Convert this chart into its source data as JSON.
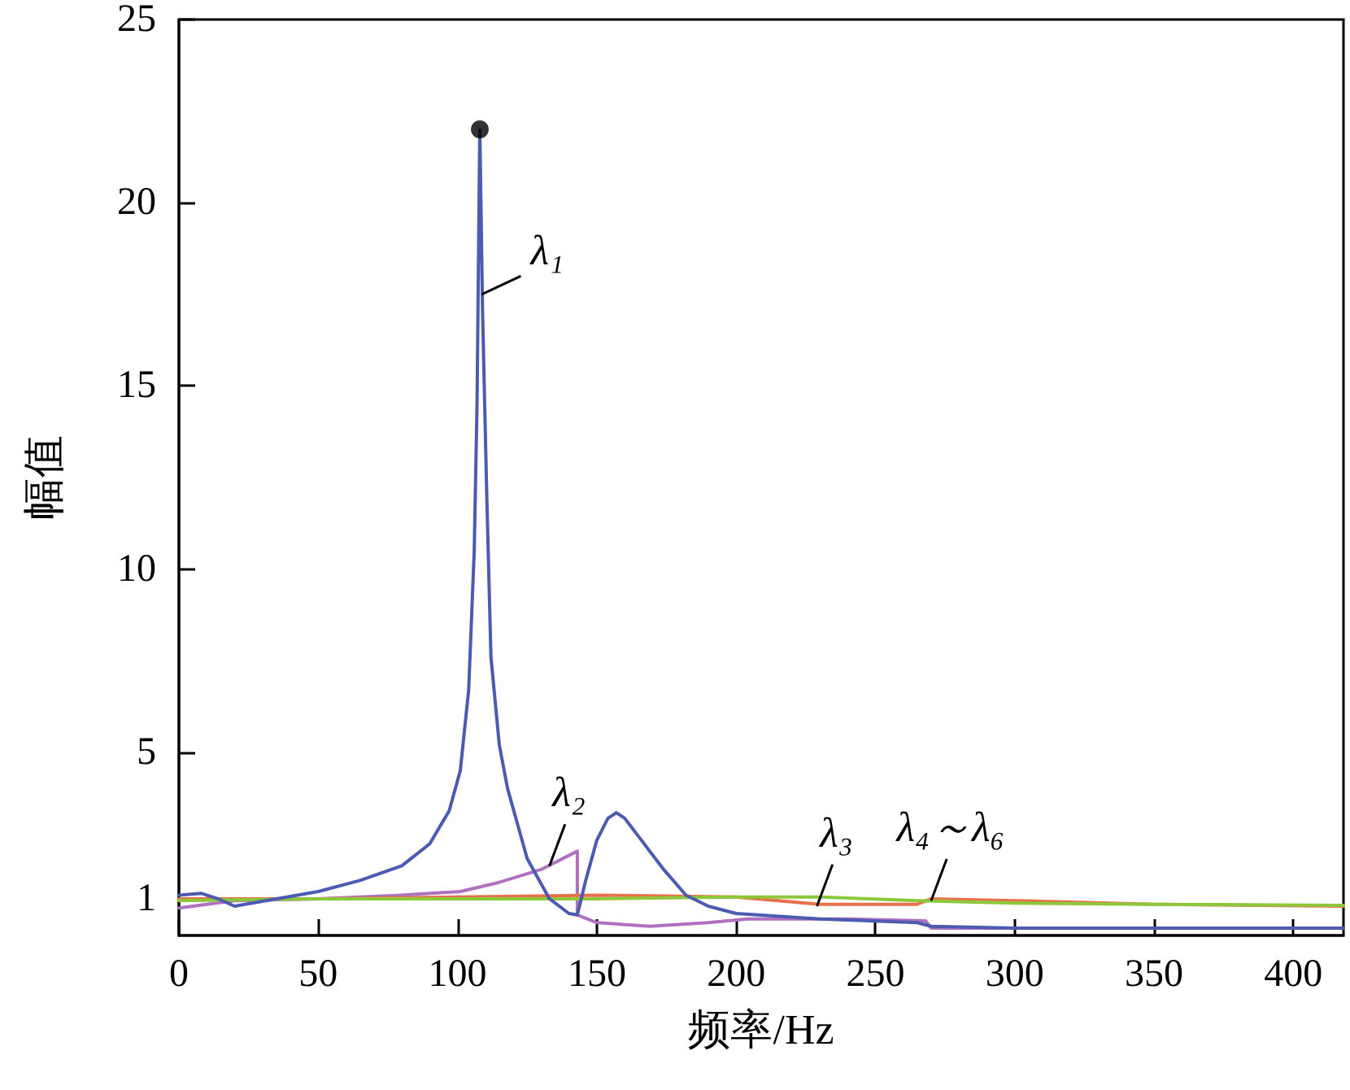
{
  "chart_data": {
    "type": "line",
    "xlabel": "频率/Hz",
    "ylabel": "幅值",
    "xlim": [
      0,
      418
    ],
    "xticks": [
      0,
      50,
      100,
      150,
      200,
      250,
      300,
      350,
      400
    ],
    "ylim": [
      0,
      25
    ],
    "yticks": [
      1,
      5,
      10,
      15,
      20,
      25
    ],
    "grid": false,
    "marker": "none",
    "line_style": "solid",
    "series": [
      {
        "color": "#b070c0",
        "x": [
          0,
          10,
          20,
          50,
          80,
          101,
          115,
          130,
          143,
          143,
          150,
          169,
          190,
          204,
          240,
          268,
          270,
          300,
          418
        ],
        "values": [
          0.75,
          0.85,
          0.95,
          1.0,
          1.1,
          1.2,
          1.45,
          1.8,
          2.3,
          0.56,
          0.35,
          0.25,
          0.35,
          0.45,
          0.45,
          0.4,
          0.2,
          0.2,
          0.2
        ]
      },
      {
        "color": "#e8704a",
        "x": [
          0,
          50,
          100,
          150,
          200,
          230,
          265,
          270,
          300,
          350,
          418
        ],
        "values": [
          1.0,
          1.0,
          1.05,
          1.1,
          1.05,
          0.85,
          0.85,
          1.0,
          0.95,
          0.85,
          0.8
        ]
      },
      {
        "color": "#8cc83c",
        "x": [
          0,
          50,
          100,
          150,
          200,
          230,
          265,
          300,
          350,
          418
        ],
        "values": [
          0.95,
          1.0,
          1.0,
          1.0,
          1.05,
          1.05,
          0.95,
          0.88,
          0.85,
          0.82
        ]
      },
      {
        "color": "#4a5bb0",
        "x": [
          0,
          8,
          14,
          20,
          35,
          50,
          65,
          80,
          90,
          97,
          101,
          104,
          106,
          107,
          108,
          109,
          110.5,
          112,
          115,
          118,
          125,
          133,
          140,
          143,
          146,
          150,
          154,
          157,
          160,
          166,
          174,
          182,
          190,
          200,
          230,
          265,
          270,
          300,
          418
        ],
        "values": [
          1.1,
          1.15,
          1.0,
          0.8,
          1.0,
          1.2,
          1.5,
          1.9,
          2.5,
          3.4,
          4.5,
          6.7,
          10.5,
          14.5,
          22,
          17,
          12,
          7.6,
          5.2,
          4.0,
          2.1,
          1.0,
          0.6,
          0.56,
          1.5,
          2.6,
          3.2,
          3.35,
          3.2,
          2.6,
          1.8,
          1.1,
          0.8,
          0.6,
          0.45,
          0.35,
          0.25,
          0.2,
          0.2
        ]
      },
      {
        "type": "scatter",
        "marker": "circle",
        "color": "#000000",
        "x": [
          108
        ],
        "values": [
          22
        ]
      }
    ],
    "annotations": [
      {
        "text": "λ₁",
        "x": 108.7,
        "y": 17.5
      },
      {
        "text": "λ₂",
        "x": 133,
        "y": 1.9
      },
      {
        "text": "λ₃",
        "x": 229,
        "y": 0.8
      },
      {
        "text": "λ₄～λ₆",
        "x": 270,
        "y": 0.95
      }
    ]
  }
}
